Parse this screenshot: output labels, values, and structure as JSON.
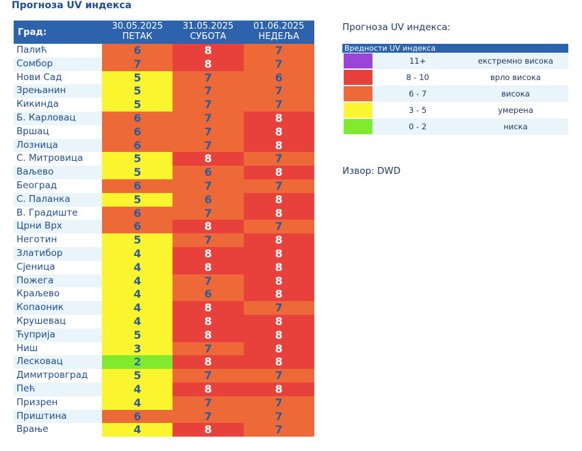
{
  "page_title": "Прогноза UV индекса",
  "table": {
    "city_header": "Град:",
    "days": [
      {
        "date": "30.05.2025",
        "name": "ПЕТАК"
      },
      {
        "date": "31.05.2025",
        "name": "СУБОТА"
      },
      {
        "date": "01.06.2025",
        "name": "НЕДЕЉА"
      }
    ],
    "rows": [
      {
        "city": "Палић",
        "values": [
          "6",
          "8",
          "7"
        ]
      },
      {
        "city": "Сомбор",
        "values": [
          "7",
          "8",
          "7"
        ]
      },
      {
        "city": "Нови Сад",
        "values": [
          "5",
          "7",
          "6"
        ]
      },
      {
        "city": "Зрењанин",
        "values": [
          "5",
          "7",
          "7"
        ]
      },
      {
        "city": "Кикинда",
        "values": [
          "5",
          "7",
          "7"
        ]
      },
      {
        "city": "Б. Карловац",
        "values": [
          "6",
          "7",
          "8"
        ]
      },
      {
        "city": "Вршац",
        "values": [
          "6",
          "7",
          "8"
        ]
      },
      {
        "city": "Лозница",
        "values": [
          "6",
          "7",
          "8"
        ]
      },
      {
        "city": "С. Митровица",
        "values": [
          "5",
          "8",
          "7"
        ]
      },
      {
        "city": "Ваљево",
        "values": [
          "5",
          "6",
          "8"
        ]
      },
      {
        "city": "Београд",
        "values": [
          "6",
          "7",
          "7"
        ]
      },
      {
        "city": "С. Паланка",
        "values": [
          "5",
          "6",
          "8"
        ]
      },
      {
        "city": "В. Градиште",
        "values": [
          "6",
          "7",
          "8"
        ]
      },
      {
        "city": "Црни Врх",
        "values": [
          "6",
          "8",
          "7"
        ]
      },
      {
        "city": "Неготин",
        "values": [
          "5",
          "7",
          "8"
        ]
      },
      {
        "city": "Златибор",
        "values": [
          "4",
          "8",
          "8"
        ]
      },
      {
        "city": "Сјеница",
        "values": [
          "4",
          "8",
          "8"
        ]
      },
      {
        "city": "Пожега",
        "values": [
          "4",
          "7",
          "8"
        ]
      },
      {
        "city": "Краљево",
        "values": [
          "4",
          "6",
          "8"
        ]
      },
      {
        "city": "Копаоник",
        "values": [
          "4",
          "8",
          "7"
        ]
      },
      {
        "city": "Крушевац",
        "values": [
          "4",
          "8",
          "8"
        ]
      },
      {
        "city": "Ћуприја",
        "values": [
          "5",
          "8",
          "8"
        ]
      },
      {
        "city": "Ниш",
        "values": [
          "3",
          "7",
          "8"
        ]
      },
      {
        "city": "Лесковац",
        "values": [
          "2",
          "8",
          "8"
        ]
      },
      {
        "city": "Димитровград",
        "values": [
          "5",
          "7",
          "7"
        ]
      },
      {
        "city": "Пећ",
        "values": [
          "4",
          "8",
          "8"
        ]
      },
      {
        "city": "Призрен",
        "values": [
          "4",
          "7",
          "7"
        ]
      },
      {
        "city": "Приштина",
        "values": [
          "6",
          "7",
          "7"
        ]
      },
      {
        "city": "Врање",
        "values": [
          "4",
          "8",
          "7"
        ]
      }
    ]
  },
  "legend": {
    "title": "Прогноза UV индекса:",
    "header": "Вредности UV индекса",
    "items": [
      {
        "range": "11+",
        "label": "екстремно висока",
        "color": "#9a45d6"
      },
      {
        "range": "8 - 10",
        "label": "врло висока",
        "color": "#e8403a"
      },
      {
        "range": "6 - 7",
        "label": "висока",
        "color": "#ed6a38"
      },
      {
        "range": "3 - 5",
        "label": "умерена",
        "color": "#fbf530"
      },
      {
        "range": "0 - 2",
        "label": "ниска",
        "color": "#82ea2e"
      }
    ]
  },
  "source": "Извор: DWD",
  "colors": {
    "header_bg": "#2d63ad",
    "text_blue": "#1f4e96",
    "value_white": "#ffffff",
    "value_dark": "#2d5d98",
    "value_green_text": "#2f6fa0"
  }
}
